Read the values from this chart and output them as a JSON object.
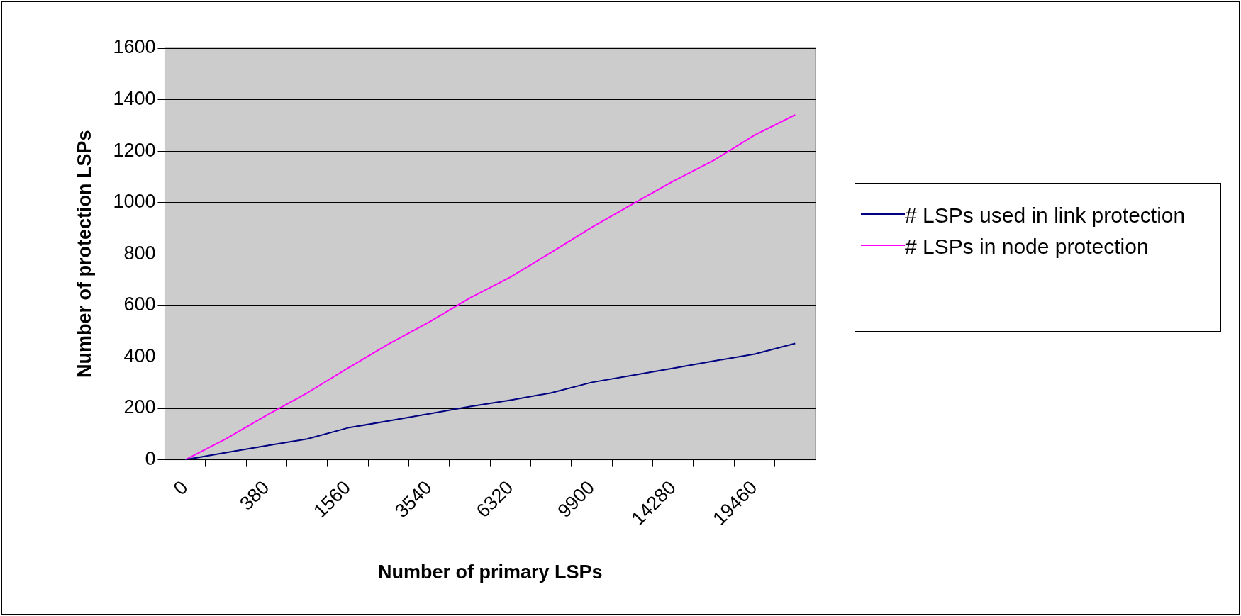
{
  "chart_data": {
    "type": "line",
    "xlabel": "Number of primary LSPs",
    "ylabel": "Number of protection LSPs",
    "categories": [
      "0",
      null,
      "380",
      null,
      "1560",
      null,
      "3540",
      null,
      "6320",
      null,
      "9900",
      null,
      "14280",
      null,
      "19460",
      null
    ],
    "series": [
      {
        "name": "# LSPs used in link protection",
        "color": "#000080",
        "values": [
          0,
          28,
          55,
          81,
          124,
          151,
          179,
          207,
          232,
          260,
          301,
          328,
          356,
          384,
          411,
          452
        ]
      },
      {
        "name": "# LSPs in node protection",
        "color": "#ff00ff",
        "values": [
          0,
          81,
          173,
          260,
          356,
          450,
          535,
          629,
          710,
          806,
          904,
          994,
          1083,
          1164,
          1262,
          1341
        ]
      }
    ],
    "ylim": [
      0,
      1600
    ],
    "yticks": [
      0,
      200,
      400,
      600,
      800,
      1000,
      1200,
      1400,
      1600
    ],
    "grid": "y",
    "legend": "right",
    "marker": "none",
    "line_style": "solid"
  }
}
